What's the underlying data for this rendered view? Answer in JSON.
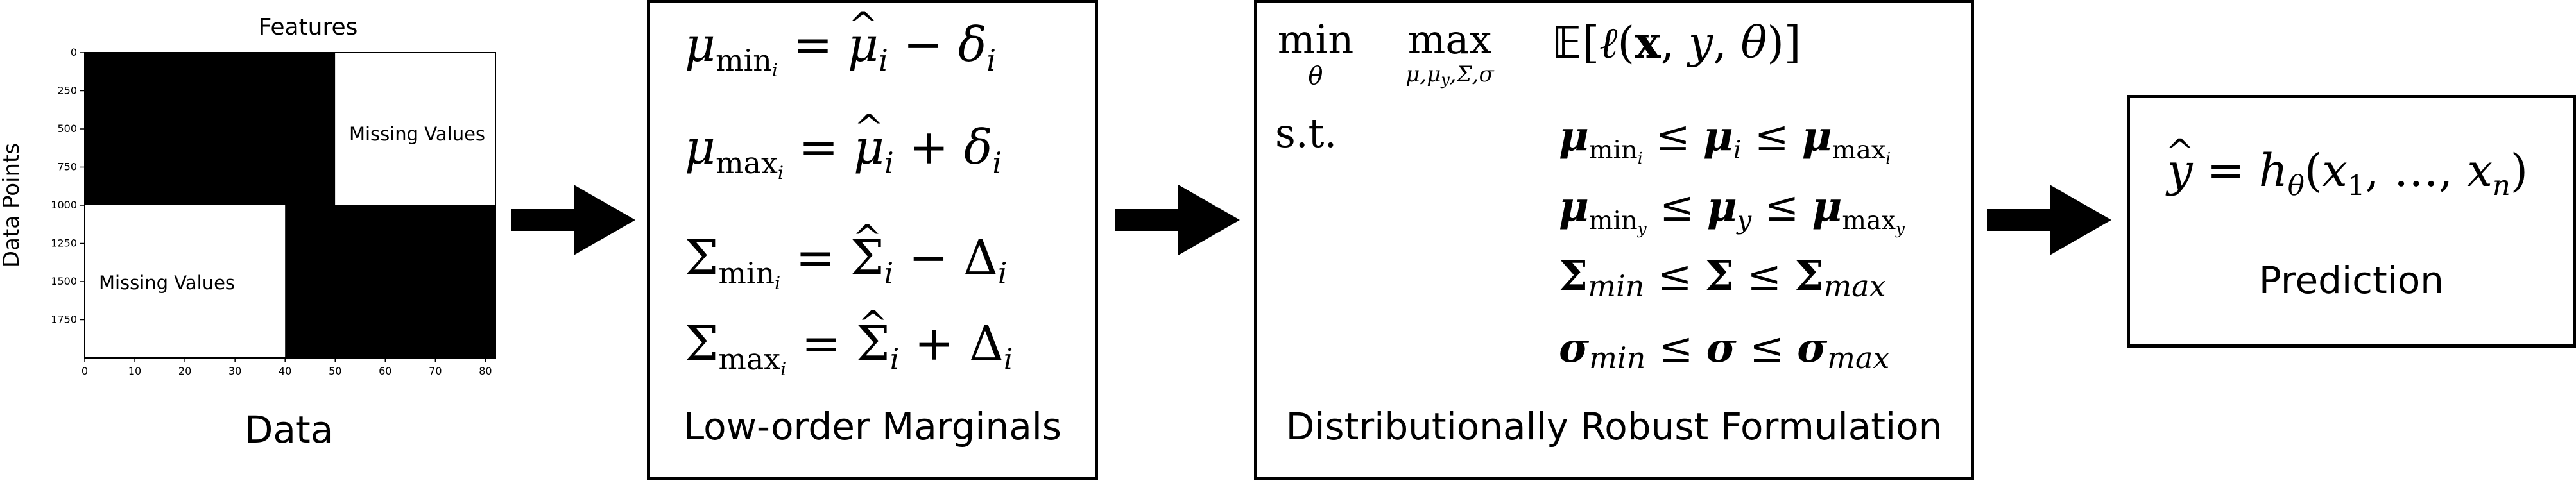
{
  "heatmap": {
    "title": "Features",
    "ylabel": "Data Points",
    "missing_label_top": "Missing Values",
    "missing_label_bottom": "Missing Values",
    "x_ticks": [
      "0",
      "10",
      "20",
      "30",
      "40",
      "50",
      "60",
      "70",
      "80"
    ],
    "y_ticks": [
      "0",
      "250",
      "500",
      "750",
      "1000",
      "1250",
      "1500",
      "1750"
    ],
    "colors": {
      "observed": "#000000",
      "missing": "#ffffff"
    }
  },
  "captions": {
    "data": "Data",
    "marginals": "Low-order Marginals",
    "dro": "Distributionally Robust Formulation",
    "prediction": "Prediction"
  },
  "dro": {
    "min_op": "min",
    "max_op": "max",
    "st": "s.t."
  },
  "chart_data": {
    "type": "heatmap",
    "title": "Features",
    "xlabel": "",
    "ylabel": "Data Points",
    "xlim": [
      0,
      82
    ],
    "ylim": [
      2000,
      0
    ],
    "x_ticks": [
      0,
      10,
      20,
      30,
      40,
      50,
      60,
      70,
      80
    ],
    "y_ticks": [
      0,
      250,
      500,
      750,
      1000,
      1250,
      1500,
      1750
    ],
    "blocks": [
      {
        "x": [
          0,
          50
        ],
        "y": [
          0,
          1000
        ],
        "value": "observed"
      },
      {
        "x": [
          50,
          82
        ],
        "y": [
          0,
          1000
        ],
        "value": "missing"
      },
      {
        "x": [
          0,
          40
        ],
        "y": [
          1000,
          2000
        ],
        "value": "missing"
      },
      {
        "x": [
          40,
          82
        ],
        "y": [
          1000,
          2000
        ],
        "value": "observed"
      }
    ]
  }
}
